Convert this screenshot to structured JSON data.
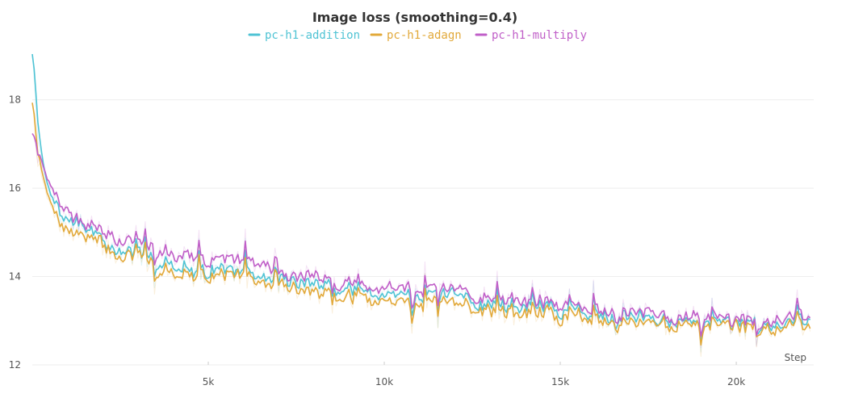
{
  "chart_data": {
    "type": "line",
    "title": "Image loss (smoothing=0.4)",
    "xlabel": "Step",
    "ylabel": "",
    "xlim": [
      0,
      22200
    ],
    "ylim": [
      12,
      19.2
    ],
    "xticks": [
      5000,
      10000,
      15000,
      20000
    ],
    "xtick_labels": [
      "5k",
      "10k",
      "15k",
      "20k"
    ],
    "yticks": [
      12,
      14,
      16,
      18
    ],
    "ytick_labels": [
      "12",
      "14",
      "16",
      "18"
    ],
    "grid": true,
    "legend_position": "top-center",
    "series": [
      {
        "name": "pc-h1-addition",
        "color": "#4fc3d4",
        "points": [
          [
            0,
            19.1
          ],
          [
            100,
            17.9
          ],
          [
            200,
            16.9
          ],
          [
            350,
            16.2
          ],
          [
            500,
            15.8
          ],
          [
            700,
            15.6
          ],
          [
            900,
            15.3
          ],
          [
            1200,
            15.2
          ],
          [
            1500,
            15.1
          ],
          [
            1800,
            14.9
          ],
          [
            2100,
            14.7
          ],
          [
            2500,
            14.6
          ],
          [
            2900,
            14.5
          ],
          [
            3300,
            14.4
          ],
          [
            3700,
            14.35
          ],
          [
            4200,
            14.2
          ],
          [
            4700,
            14.05
          ],
          [
            5200,
            14.2
          ],
          [
            5700,
            14.15
          ],
          [
            6200,
            14.0
          ],
          [
            6700,
            13.95
          ],
          [
            7200,
            13.9
          ],
          [
            7700,
            13.8
          ],
          [
            8200,
            13.85
          ],
          [
            8700,
            13.7
          ],
          [
            9200,
            13.75
          ],
          [
            9700,
            13.6
          ],
          [
            10200,
            13.7
          ],
          [
            10700,
            13.55
          ],
          [
            11200,
            13.5
          ],
          [
            11700,
            13.55
          ],
          [
            12200,
            13.45
          ],
          [
            12700,
            13.4
          ],
          [
            13200,
            13.4
          ],
          [
            13700,
            13.3
          ],
          [
            14200,
            13.3
          ],
          [
            14700,
            13.3
          ],
          [
            15200,
            13.2
          ],
          [
            15700,
            13.2
          ],
          [
            16200,
            13.15
          ],
          [
            16700,
            13.15
          ],
          [
            17200,
            13.1
          ],
          [
            17700,
            13.1
          ],
          [
            18200,
            13.0
          ],
          [
            18700,
            12.95
          ],
          [
            19200,
            12.95
          ],
          [
            19700,
            12.95
          ],
          [
            20200,
            12.9
          ],
          [
            20700,
            12.95
          ],
          [
            21200,
            13.0
          ],
          [
            21700,
            13.0
          ],
          [
            22100,
            13.0
          ]
        ]
      },
      {
        "name": "pc-h1-adagn",
        "color": "#e2a93a",
        "points": [
          [
            0,
            18.0
          ],
          [
            100,
            17.0
          ],
          [
            200,
            16.5
          ],
          [
            350,
            16.0
          ],
          [
            500,
            15.6
          ],
          [
            700,
            15.3
          ],
          [
            900,
            15.1
          ],
          [
            1200,
            15.0
          ],
          [
            1500,
            14.9
          ],
          [
            1800,
            14.8
          ],
          [
            2100,
            14.6
          ],
          [
            2500,
            14.5
          ],
          [
            2900,
            14.4
          ],
          [
            3300,
            14.3
          ],
          [
            3700,
            14.2
          ],
          [
            4200,
            14.05
          ],
          [
            4700,
            13.95
          ],
          [
            5200,
            14.05
          ],
          [
            5700,
            14.0
          ],
          [
            6200,
            13.9
          ],
          [
            6700,
            13.85
          ],
          [
            7200,
            13.75
          ],
          [
            7700,
            13.7
          ],
          [
            8200,
            13.7
          ],
          [
            8700,
            13.55
          ],
          [
            9200,
            13.6
          ],
          [
            9700,
            13.45
          ],
          [
            10200,
            13.55
          ],
          [
            10700,
            13.4
          ],
          [
            11200,
            13.35
          ],
          [
            11700,
            13.4
          ],
          [
            12200,
            13.3
          ],
          [
            12700,
            13.25
          ],
          [
            13200,
            13.25
          ],
          [
            13700,
            13.15
          ],
          [
            14200,
            13.15
          ],
          [
            14700,
            13.15
          ],
          [
            15200,
            13.05
          ],
          [
            15700,
            13.1
          ],
          [
            16200,
            13.0
          ],
          [
            16700,
            13.05
          ],
          [
            17200,
            12.95
          ],
          [
            17700,
            13.0
          ],
          [
            18200,
            12.9
          ],
          [
            18700,
            12.85
          ],
          [
            19200,
            12.85
          ],
          [
            19700,
            12.85
          ],
          [
            20200,
            12.8
          ],
          [
            20700,
            12.85
          ],
          [
            21200,
            12.9
          ],
          [
            21700,
            12.9
          ],
          [
            22100,
            12.85
          ]
        ]
      },
      {
        "name": "pc-h1-multiply",
        "color": "#c05fc8",
        "points": [
          [
            0,
            17.3
          ],
          [
            100,
            17.0
          ],
          [
            200,
            16.7
          ],
          [
            350,
            16.3
          ],
          [
            500,
            16.0
          ],
          [
            700,
            15.7
          ],
          [
            900,
            15.5
          ],
          [
            1200,
            15.3
          ],
          [
            1500,
            15.2
          ],
          [
            1800,
            15.05
          ],
          [
            2100,
            14.95
          ],
          [
            2500,
            14.85
          ],
          [
            2900,
            14.75
          ],
          [
            3300,
            14.65
          ],
          [
            3700,
            14.6
          ],
          [
            4200,
            14.5
          ],
          [
            4700,
            14.35
          ],
          [
            5200,
            14.45
          ],
          [
            5700,
            14.35
          ],
          [
            6200,
            14.25
          ],
          [
            6700,
            14.2
          ],
          [
            7200,
            14.05
          ],
          [
            7700,
            14.0
          ],
          [
            8200,
            14.0
          ],
          [
            8700,
            13.85
          ],
          [
            9200,
            13.9
          ],
          [
            9700,
            13.75
          ],
          [
            10200,
            13.85
          ],
          [
            10700,
            13.7
          ],
          [
            11200,
            13.65
          ],
          [
            11700,
            13.7
          ],
          [
            12200,
            13.6
          ],
          [
            12700,
            13.55
          ],
          [
            13200,
            13.55
          ],
          [
            13700,
            13.45
          ],
          [
            14200,
            13.4
          ],
          [
            14700,
            13.4
          ],
          [
            15200,
            13.35
          ],
          [
            15700,
            13.3
          ],
          [
            16200,
            13.25
          ],
          [
            16700,
            13.25
          ],
          [
            17200,
            13.2
          ],
          [
            17700,
            13.2
          ],
          [
            18200,
            13.1
          ],
          [
            18700,
            13.05
          ],
          [
            19200,
            13.05
          ],
          [
            19700,
            13.0
          ],
          [
            20200,
            12.95
          ],
          [
            20700,
            13.0
          ],
          [
            21200,
            13.1
          ],
          [
            21700,
            13.1
          ],
          [
            22100,
            13.05
          ]
        ]
      }
    ]
  }
}
